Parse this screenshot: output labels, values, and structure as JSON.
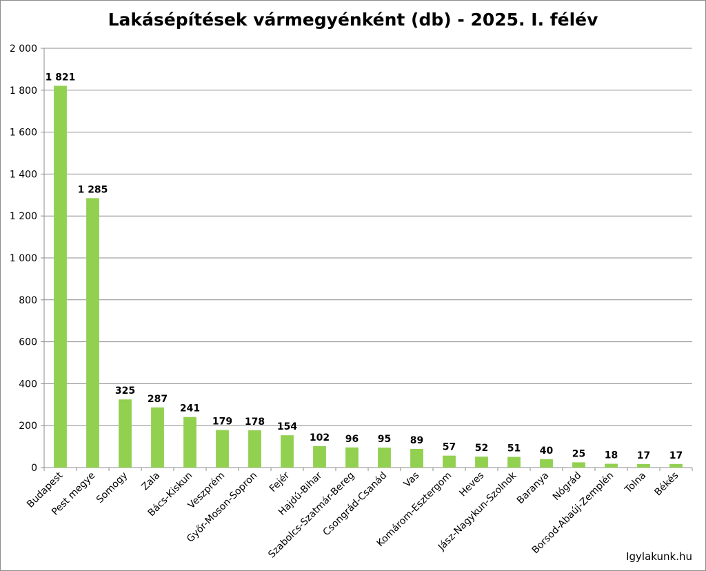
{
  "chart_data": {
    "type": "bar",
    "title": "Lakásépítések vármegyénként (db) - 2025. I. félév",
    "xlabel": "",
    "ylabel": "",
    "ylim": [
      0,
      2000
    ],
    "yticks": [
      0,
      200,
      400,
      600,
      800,
      1000,
      1200,
      1400,
      1600,
      1800,
      2000
    ],
    "ytick_labels": [
      "0",
      "200",
      "400",
      "600",
      "800",
      "1 000",
      "1 200",
      "1 400",
      "1 600",
      "1 800",
      "2 000"
    ],
    "grid": true,
    "bar_color": "#92d050",
    "categories": [
      "Budapest",
      "Pest megye",
      "Somogy",
      "Zala",
      "Bács-Kiskun",
      "Veszprém",
      "Győr-Moson-Sopron",
      "Fejér",
      "Hajdú-Bihar",
      "Szabolcs-Szatmár-Bereg",
      "Csongrád-Csanád",
      "Vas",
      "Komárom-Esztergom",
      "Heves",
      "Jász-Nagykun-Szolnok",
      "Baranya",
      "Nógrád",
      "Borsod-Abaúj-Zemplén",
      "Tolna",
      "Békés"
    ],
    "values": [
      1821,
      1285,
      325,
      287,
      241,
      179,
      178,
      154,
      102,
      96,
      95,
      89,
      57,
      52,
      51,
      40,
      25,
      18,
      17,
      17
    ],
    "data_labels": [
      "1 821",
      "1 285",
      "325",
      "287",
      "241",
      "179",
      "178",
      "154",
      "102",
      "96",
      "95",
      "89",
      "57",
      "52",
      "51",
      "40",
      "25",
      "18",
      "17",
      "17"
    ]
  },
  "source": "Igylakunk.hu"
}
